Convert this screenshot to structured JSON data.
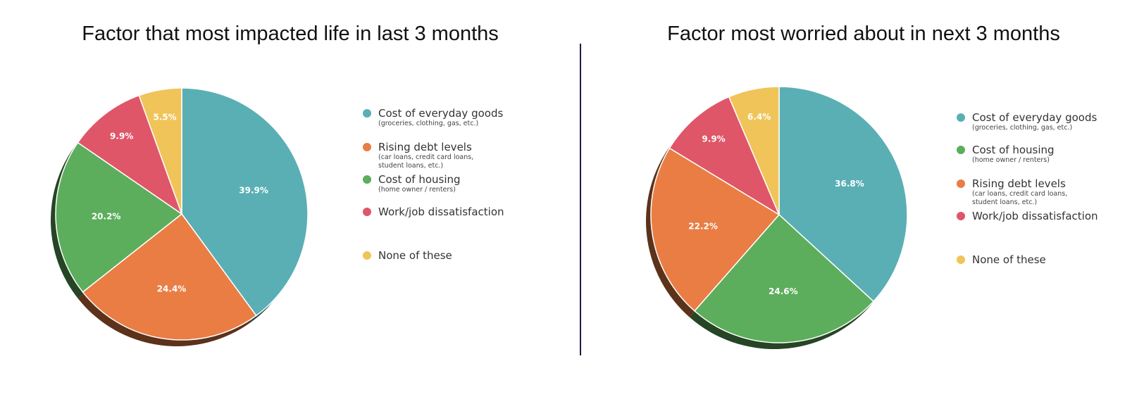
{
  "chart_data": [
    {
      "type": "pie",
      "title": "Factor that most impacted life in last 3 months",
      "slices": [
        {
          "label": "Cost of everyday goods",
          "sublabel": "(groceries, clothing, gas, etc.)",
          "value": 39.9,
          "display": "39.9%",
          "color": "#5aafb4"
        },
        {
          "label": "Rising debt levels",
          "sublabel": "(car loans, credit card loans, student loans, etc.)",
          "value": 24.4,
          "display": "24.4%",
          "color": "#e97d44"
        },
        {
          "label": "Cost of housing",
          "sublabel": "(home owner / renters)",
          "value": 20.2,
          "display": "20.2%",
          "color": "#5cad5c"
        },
        {
          "label": "Work/job dissatisfaction",
          "sublabel": "",
          "value": 9.9,
          "display": "9.9%",
          "color": "#de5667"
        },
        {
          "label": "None of these",
          "sublabel": "",
          "value": 5.5,
          "display": "5.5%",
          "color": "#f1c45a"
        }
      ],
      "legend": "right"
    },
    {
      "type": "pie",
      "title": "Factor most worried about in next 3 months",
      "slices": [
        {
          "label": "Cost of everyday goods",
          "sublabel": "(groceries, clothing, gas, etc.)",
          "value": 36.8,
          "display": "36.8%",
          "color": "#5aafb4"
        },
        {
          "label": "Cost of housing",
          "sublabel": "(home owner / renters)",
          "value": 24.6,
          "display": "24.6%",
          "color": "#5cad5c"
        },
        {
          "label": "Rising debt levels",
          "sublabel": "(car loans, credit card loans, student loans, etc.)",
          "value": 22.2,
          "display": "22.2%",
          "color": "#e97d44"
        },
        {
          "label": "Work/job dissatisfaction",
          "sublabel": "",
          "value": 9.9,
          "display": "9.9%",
          "color": "#de5667"
        },
        {
          "label": "None of these",
          "sublabel": "",
          "value": 6.4,
          "display": "6.4%",
          "color": "#f1c45a"
        }
      ],
      "legend": "right"
    }
  ]
}
